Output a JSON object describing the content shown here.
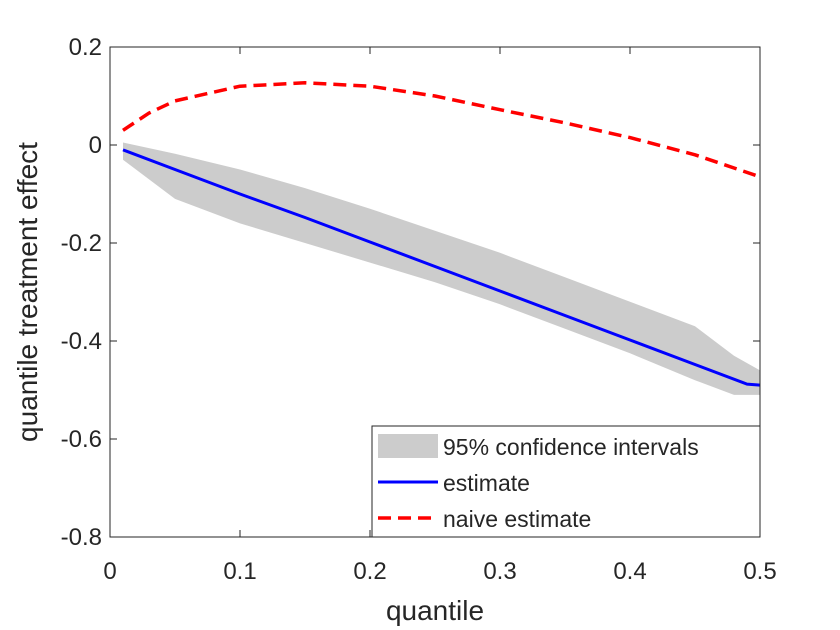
{
  "chart_data": {
    "type": "line",
    "title": "",
    "xlabel": "quantile",
    "ylabel": "quantile treatment effect",
    "xlim": [
      0,
      0.5
    ],
    "ylim": [
      -0.8,
      0.2
    ],
    "xticks": [
      0,
      0.1,
      0.2,
      0.3,
      0.4,
      0.5
    ],
    "xtick_labels": [
      "0",
      "0.1",
      "0.2",
      "0.3",
      "0.4",
      "0.5"
    ],
    "yticks": [
      -0.8,
      -0.6,
      -0.4,
      -0.2,
      0,
      0.2
    ],
    "ytick_labels": [
      "-0.8",
      "-0.6",
      "-0.4",
      "-0.2",
      "0",
      "0.2"
    ],
    "grid": false,
    "legend_position": "bottom-right",
    "band": {
      "name": "95% confidence intervals",
      "color": "#cccccc",
      "x": [
        0.01,
        0.05,
        0.1,
        0.15,
        0.2,
        0.25,
        0.3,
        0.35,
        0.4,
        0.45,
        0.48,
        0.5
      ],
      "upper": [
        0.005,
        -0.018,
        -0.05,
        -0.088,
        -0.13,
        -0.175,
        -0.22,
        -0.27,
        -0.32,
        -0.37,
        -0.43,
        -0.46
      ],
      "lower": [
        -0.03,
        -0.11,
        -0.16,
        -0.2,
        -0.24,
        -0.28,
        -0.325,
        -0.375,
        -0.425,
        -0.48,
        -0.51,
        -0.51
      ]
    },
    "series": [
      {
        "name": "estimate",
        "color": "#0000ff",
        "style": "solid",
        "x": [
          0.01,
          0.05,
          0.1,
          0.15,
          0.2,
          0.25,
          0.3,
          0.35,
          0.4,
          0.45,
          0.49,
          0.5
        ],
        "values": [
          -0.01,
          -0.05,
          -0.1,
          -0.148,
          -0.198,
          -0.248,
          -0.298,
          -0.348,
          -0.398,
          -0.448,
          -0.488,
          -0.49
        ]
      },
      {
        "name": "naive estimate",
        "color": "#ff0000",
        "style": "dashed",
        "x": [
          0.01,
          0.03,
          0.05,
          0.1,
          0.15,
          0.2,
          0.25,
          0.3,
          0.35,
          0.4,
          0.45,
          0.5
        ],
        "values": [
          0.03,
          0.065,
          0.09,
          0.12,
          0.127,
          0.12,
          0.1,
          0.072,
          0.045,
          0.015,
          -0.02,
          -0.065
        ]
      }
    ]
  }
}
